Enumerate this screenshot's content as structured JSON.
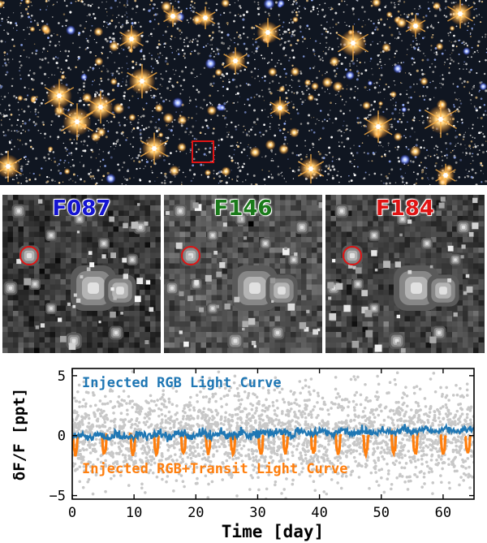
{
  "colors": {
    "F087": "#1414d2",
    "F146": "#1a7a1a",
    "F184": "#e01414",
    "marker": "#e01414",
    "rgb_curve": "#1f77b4",
    "transit_curve": "#ff7f0e",
    "noise": "#c8c8c8"
  },
  "cutouts": [
    {
      "filter": "F087"
    },
    {
      "filter": "F146"
    },
    {
      "filter": "F184"
    }
  ],
  "chart_data": {
    "type": "scatter",
    "xlabel": "Time [day]",
    "ylabel": "δF/F [ppt]",
    "xlim": [
      0,
      65
    ],
    "ylim": [
      -5.3,
      5.6
    ],
    "xticks": [
      0,
      10,
      20,
      30,
      40,
      50,
      60
    ],
    "yticks": [
      5,
      0,
      -5
    ],
    "grid": false,
    "series": [
      {
        "name": "Injected RGB Light Curve",
        "kind": "line",
        "description_values": {
          "mean": 0.0,
          "trend_start": -0.1,
          "trend_end": 0.5,
          "jitter": 0.3
        }
      },
      {
        "name": "Injected RGB+Transit Light Curve",
        "kind": "line",
        "transit_times": [
          0.5,
          5.2,
          9.8,
          13.6,
          18.0,
          22.0,
          26.0,
          30.5,
          34.5,
          39.0,
          43.0,
          47.5,
          52.0,
          55.5,
          60.0,
          64.0
        ],
        "transit_depth": -1.5
      },
      {
        "kind": "scatter",
        "description_values": {
          "mean": 0.0,
          "spread": 5.0
        }
      }
    ]
  }
}
